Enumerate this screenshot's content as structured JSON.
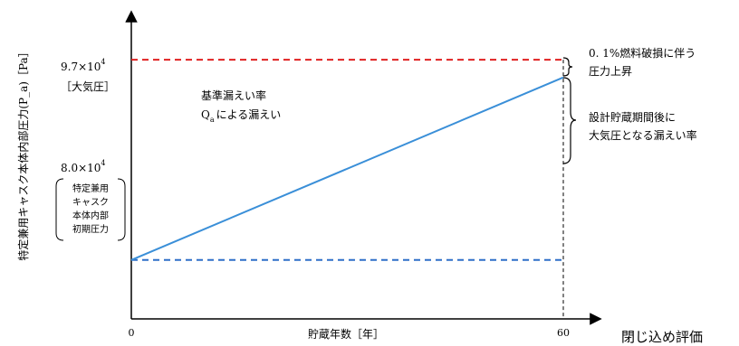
{
  "chart_data": {
    "type": "line",
    "xlabel": "貯蔵年数［年］",
    "ylabel": "特定兼用キャスク本体内部圧力(P_a)［Pa］",
    "x_ticks": [
      "0",
      "60"
    ],
    "xlim": [
      0,
      60
    ],
    "ylim": [
      75000,
      99000
    ],
    "y_ref_high": {
      "value": 97000,
      "base": "9.7×10",
      "exp": "4",
      "note": "［大気圧］",
      "color": "#e02020"
    },
    "y_ref_low": {
      "value": 80000,
      "base": "8.0×10",
      "exp": "4",
      "color": "#2e6fc8"
    },
    "initial_pressure_box": [
      "特定兼用",
      "キャスク",
      "本体内部",
      "初期圧力"
    ],
    "series": [
      {
        "x": [
          0,
          60
        ],
        "y": [
          80000,
          95500
        ],
        "color": "#3a8fd8"
      }
    ],
    "annotations": {
      "leak_rate_line1": "基準漏えい率",
      "leak_rate_q": "Q",
      "leak_rate_q_sub": "a",
      "leak_rate_line2": "による漏えい",
      "fuel_damage_line1": "0. 1%燃料破損に伴う",
      "fuel_damage_line2": "圧力上昇",
      "design_line1": "設計貯蔵期間後に",
      "design_line2": "大気圧となる漏えい率"
    }
  },
  "footer_text": "閉じ込め評価"
}
